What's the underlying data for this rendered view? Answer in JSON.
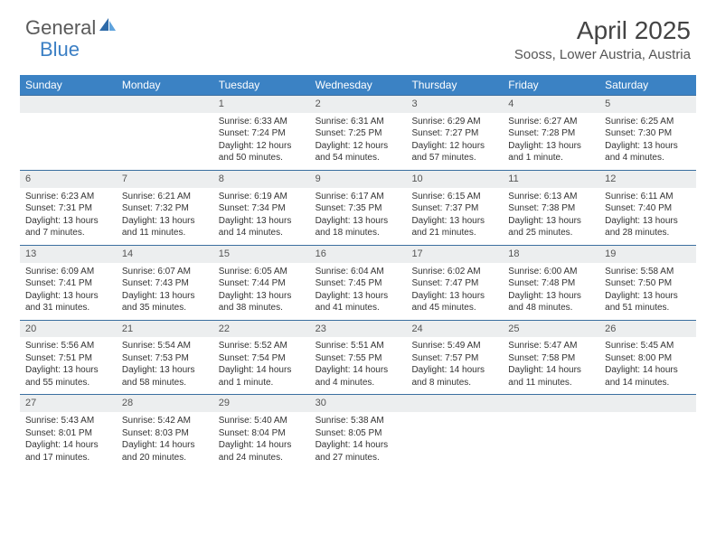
{
  "logo": {
    "text1": "General",
    "text2": "Blue"
  },
  "title": "April 2025",
  "location": "Sooss, Lower Austria, Austria",
  "colors": {
    "header_bg": "#3b82c4",
    "header_text": "#ffffff",
    "daynum_bg": "#eceeef",
    "border": "#3b6fa0"
  },
  "day_labels": [
    "Sunday",
    "Monday",
    "Tuesday",
    "Wednesday",
    "Thursday",
    "Friday",
    "Saturday"
  ],
  "weeks": [
    [
      {
        "n": "",
        "sr": "",
        "ss": "",
        "dl": ""
      },
      {
        "n": "",
        "sr": "",
        "ss": "",
        "dl": ""
      },
      {
        "n": "1",
        "sr": "Sunrise: 6:33 AM",
        "ss": "Sunset: 7:24 PM",
        "dl": "Daylight: 12 hours and 50 minutes."
      },
      {
        "n": "2",
        "sr": "Sunrise: 6:31 AM",
        "ss": "Sunset: 7:25 PM",
        "dl": "Daylight: 12 hours and 54 minutes."
      },
      {
        "n": "3",
        "sr": "Sunrise: 6:29 AM",
        "ss": "Sunset: 7:27 PM",
        "dl": "Daylight: 12 hours and 57 minutes."
      },
      {
        "n": "4",
        "sr": "Sunrise: 6:27 AM",
        "ss": "Sunset: 7:28 PM",
        "dl": "Daylight: 13 hours and 1 minute."
      },
      {
        "n": "5",
        "sr": "Sunrise: 6:25 AM",
        "ss": "Sunset: 7:30 PM",
        "dl": "Daylight: 13 hours and 4 minutes."
      }
    ],
    [
      {
        "n": "6",
        "sr": "Sunrise: 6:23 AM",
        "ss": "Sunset: 7:31 PM",
        "dl": "Daylight: 13 hours and 7 minutes."
      },
      {
        "n": "7",
        "sr": "Sunrise: 6:21 AM",
        "ss": "Sunset: 7:32 PM",
        "dl": "Daylight: 13 hours and 11 minutes."
      },
      {
        "n": "8",
        "sr": "Sunrise: 6:19 AM",
        "ss": "Sunset: 7:34 PM",
        "dl": "Daylight: 13 hours and 14 minutes."
      },
      {
        "n": "9",
        "sr": "Sunrise: 6:17 AM",
        "ss": "Sunset: 7:35 PM",
        "dl": "Daylight: 13 hours and 18 minutes."
      },
      {
        "n": "10",
        "sr": "Sunrise: 6:15 AM",
        "ss": "Sunset: 7:37 PM",
        "dl": "Daylight: 13 hours and 21 minutes."
      },
      {
        "n": "11",
        "sr": "Sunrise: 6:13 AM",
        "ss": "Sunset: 7:38 PM",
        "dl": "Daylight: 13 hours and 25 minutes."
      },
      {
        "n": "12",
        "sr": "Sunrise: 6:11 AM",
        "ss": "Sunset: 7:40 PM",
        "dl": "Daylight: 13 hours and 28 minutes."
      }
    ],
    [
      {
        "n": "13",
        "sr": "Sunrise: 6:09 AM",
        "ss": "Sunset: 7:41 PM",
        "dl": "Daylight: 13 hours and 31 minutes."
      },
      {
        "n": "14",
        "sr": "Sunrise: 6:07 AM",
        "ss": "Sunset: 7:43 PM",
        "dl": "Daylight: 13 hours and 35 minutes."
      },
      {
        "n": "15",
        "sr": "Sunrise: 6:05 AM",
        "ss": "Sunset: 7:44 PM",
        "dl": "Daylight: 13 hours and 38 minutes."
      },
      {
        "n": "16",
        "sr": "Sunrise: 6:04 AM",
        "ss": "Sunset: 7:45 PM",
        "dl": "Daylight: 13 hours and 41 minutes."
      },
      {
        "n": "17",
        "sr": "Sunrise: 6:02 AM",
        "ss": "Sunset: 7:47 PM",
        "dl": "Daylight: 13 hours and 45 minutes."
      },
      {
        "n": "18",
        "sr": "Sunrise: 6:00 AM",
        "ss": "Sunset: 7:48 PM",
        "dl": "Daylight: 13 hours and 48 minutes."
      },
      {
        "n": "19",
        "sr": "Sunrise: 5:58 AM",
        "ss": "Sunset: 7:50 PM",
        "dl": "Daylight: 13 hours and 51 minutes."
      }
    ],
    [
      {
        "n": "20",
        "sr": "Sunrise: 5:56 AM",
        "ss": "Sunset: 7:51 PM",
        "dl": "Daylight: 13 hours and 55 minutes."
      },
      {
        "n": "21",
        "sr": "Sunrise: 5:54 AM",
        "ss": "Sunset: 7:53 PM",
        "dl": "Daylight: 13 hours and 58 minutes."
      },
      {
        "n": "22",
        "sr": "Sunrise: 5:52 AM",
        "ss": "Sunset: 7:54 PM",
        "dl": "Daylight: 14 hours and 1 minute."
      },
      {
        "n": "23",
        "sr": "Sunrise: 5:51 AM",
        "ss": "Sunset: 7:55 PM",
        "dl": "Daylight: 14 hours and 4 minutes."
      },
      {
        "n": "24",
        "sr": "Sunrise: 5:49 AM",
        "ss": "Sunset: 7:57 PM",
        "dl": "Daylight: 14 hours and 8 minutes."
      },
      {
        "n": "25",
        "sr": "Sunrise: 5:47 AM",
        "ss": "Sunset: 7:58 PM",
        "dl": "Daylight: 14 hours and 11 minutes."
      },
      {
        "n": "26",
        "sr": "Sunrise: 5:45 AM",
        "ss": "Sunset: 8:00 PM",
        "dl": "Daylight: 14 hours and 14 minutes."
      }
    ],
    [
      {
        "n": "27",
        "sr": "Sunrise: 5:43 AM",
        "ss": "Sunset: 8:01 PM",
        "dl": "Daylight: 14 hours and 17 minutes."
      },
      {
        "n": "28",
        "sr": "Sunrise: 5:42 AM",
        "ss": "Sunset: 8:03 PM",
        "dl": "Daylight: 14 hours and 20 minutes."
      },
      {
        "n": "29",
        "sr": "Sunrise: 5:40 AM",
        "ss": "Sunset: 8:04 PM",
        "dl": "Daylight: 14 hours and 24 minutes."
      },
      {
        "n": "30",
        "sr": "Sunrise: 5:38 AM",
        "ss": "Sunset: 8:05 PM",
        "dl": "Daylight: 14 hours and 27 minutes."
      },
      {
        "n": "",
        "sr": "",
        "ss": "",
        "dl": ""
      },
      {
        "n": "",
        "sr": "",
        "ss": "",
        "dl": ""
      },
      {
        "n": "",
        "sr": "",
        "ss": "",
        "dl": ""
      }
    ]
  ]
}
